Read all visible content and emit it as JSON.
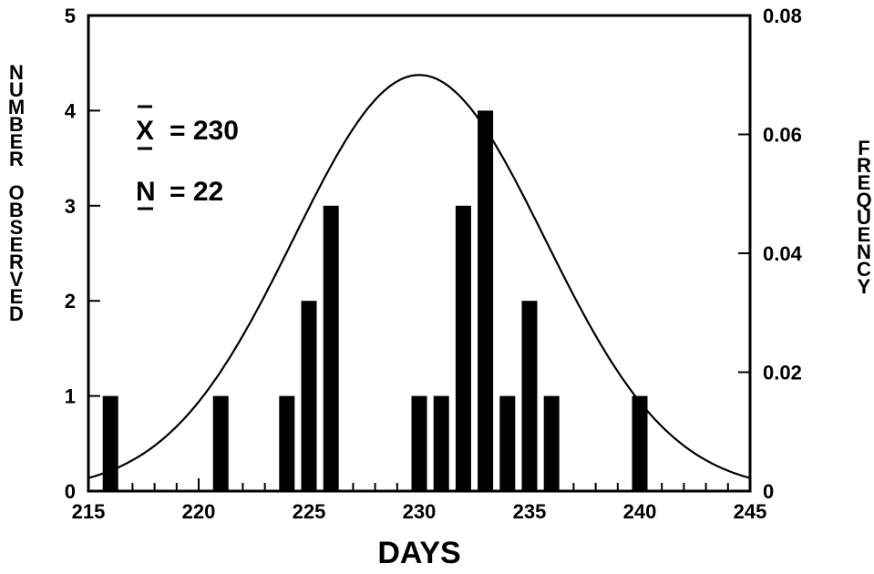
{
  "chart_data": {
    "type": "bar",
    "xlabel": "DAYS",
    "ylabel": "NUMBER OBSERVED",
    "y2label": "FREQUENCY",
    "xlim": [
      215,
      245
    ],
    "ylim": [
      0,
      5
    ],
    "y2lim": [
      0,
      0.08
    ],
    "x_ticks": [
      "215",
      "220",
      "225",
      "230",
      "235",
      "240",
      "245"
    ],
    "y_ticks": [
      "0",
      "1",
      "2",
      "3",
      "4",
      "5"
    ],
    "y2_ticks": [
      "0",
      "0.02",
      "0.04",
      "0.06",
      "0.08"
    ],
    "bars": [
      {
        "x": 216,
        "value": 1
      },
      {
        "x": 221,
        "value": 1
      },
      {
        "x": 224,
        "value": 1
      },
      {
        "x": 225,
        "value": 2
      },
      {
        "x": 226,
        "value": 3
      },
      {
        "x": 230,
        "value": 1
      },
      {
        "x": 231,
        "value": 1
      },
      {
        "x": 232,
        "value": 3
      },
      {
        "x": 233,
        "value": 4
      },
      {
        "x": 234,
        "value": 1
      },
      {
        "x": 235,
        "value": 2
      },
      {
        "x": 236,
        "value": 1
      },
      {
        "x": 240,
        "value": 1
      }
    ],
    "curve": {
      "type": "normal",
      "mean": 230,
      "sd": 5.7,
      "axis": "right"
    },
    "annotations": {
      "mean_text": "= 230",
      "mean_symbol": "X",
      "n_text": "= 22",
      "n_symbol": "N"
    },
    "grid": false
  }
}
